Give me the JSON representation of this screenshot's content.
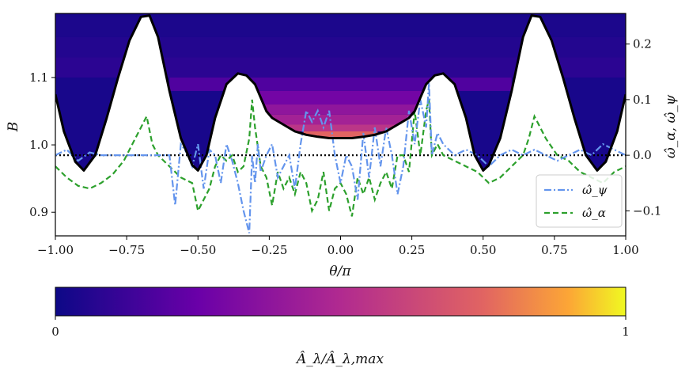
{
  "chart_data": {
    "type": "line",
    "x_label": "θ/π",
    "y_label_left": "B",
    "y_label_right": "ω̂_α,  ω̂_ψ",
    "colorbar_label": "Â_λ/Â_λ,max",
    "xlim": [
      -1.0,
      1.0
    ],
    "ylim_left": [
      0.865,
      1.195
    ],
    "ylim_right": [
      -0.145,
      0.255
    ],
    "x_ticks": [
      "−1.00",
      "−0.75",
      "−0.50",
      "−0.25",
      "0.00",
      "0.25",
      "0.50",
      "0.75",
      "1.00"
    ],
    "y_ticks_left": [
      "0.9",
      "1.0",
      "1.1"
    ],
    "y_ticks_right": [
      "−0.1",
      "0.0",
      "0.1",
      "0.2"
    ],
    "colorbar_ticks": [
      "0",
      "1"
    ],
    "colormap": "plasma",
    "colorbar_range": [
      0,
      1
    ],
    "series": [
      {
        "name": "B",
        "axis": "left",
        "color": "#000000",
        "style": "solid",
        "x": [
          -1.0,
          -0.97,
          -0.93,
          -0.9,
          -0.86,
          -0.82,
          -0.78,
          -0.74,
          -0.7,
          -0.67,
          -0.64,
          -0.6,
          -0.56,
          -0.52,
          -0.5,
          -0.47,
          -0.44,
          -0.4,
          -0.36,
          -0.33,
          -0.3,
          -0.28,
          -0.26,
          -0.24,
          -0.2,
          -0.16,
          -0.12,
          -0.08,
          -0.04,
          0.0,
          0.04,
          0.08,
          0.12,
          0.16,
          0.2,
          0.24,
          0.26,
          0.28,
          0.3,
          0.33,
          0.36,
          0.4,
          0.44,
          0.47,
          0.5,
          0.52,
          0.56,
          0.6,
          0.64,
          0.67,
          0.7,
          0.74,
          0.78,
          0.82,
          0.86,
          0.9,
          0.93,
          0.97,
          1.0
        ],
        "y": [
          1.075,
          1.02,
          0.975,
          0.962,
          0.985,
          1.04,
          1.1,
          1.155,
          1.19,
          1.192,
          1.16,
          1.08,
          1.01,
          0.97,
          0.962,
          0.985,
          1.04,
          1.09,
          1.106,
          1.103,
          1.09,
          1.07,
          1.05,
          1.04,
          1.03,
          1.02,
          1.015,
          1.012,
          1.01,
          1.01,
          1.01,
          1.012,
          1.015,
          1.02,
          1.03,
          1.04,
          1.05,
          1.07,
          1.09,
          1.103,
          1.106,
          1.09,
          1.04,
          0.985,
          0.962,
          0.97,
          1.01,
          1.08,
          1.16,
          1.192,
          1.19,
          1.155,
          1.1,
          1.04,
          0.985,
          0.962,
          0.975,
          1.02,
          1.075
        ]
      },
      {
        "name": "ω̂_ψ",
        "axis": "right",
        "color": "#6495ed",
        "style": "dashdot",
        "x": [
          -1.0,
          -0.96,
          -0.92,
          -0.88,
          -0.84,
          -0.8,
          -0.76,
          -0.72,
          -0.68,
          -0.64,
          -0.6,
          -0.58,
          -0.56,
          -0.54,
          -0.52,
          -0.5,
          -0.48,
          -0.46,
          -0.44,
          -0.42,
          -0.4,
          -0.38,
          -0.36,
          -0.34,
          -0.32,
          -0.31,
          -0.3,
          -0.29,
          -0.28,
          -0.26,
          -0.24,
          -0.22,
          -0.2,
          -0.18,
          -0.16,
          -0.14,
          -0.12,
          -0.1,
          -0.08,
          -0.06,
          -0.04,
          -0.02,
          0.0,
          0.02,
          0.04,
          0.06,
          0.08,
          0.1,
          0.12,
          0.14,
          0.16,
          0.18,
          0.2,
          0.22,
          0.24,
          0.26,
          0.28,
          0.3,
          0.31,
          0.32,
          0.34,
          0.36,
          0.4,
          0.44,
          0.48,
          0.52,
          0.56,
          0.6,
          0.64,
          0.68,
          0.72,
          0.76,
          0.8,
          0.84,
          0.88,
          0.92,
          0.96,
          1.0
        ],
        "y": [
          0.0,
          0.01,
          -0.01,
          0.005,
          0.0,
          0.0,
          0.0,
          0.0,
          0.0,
          0.0,
          0.0,
          -0.09,
          0.02,
          0.005,
          -0.02,
          0.02,
          -0.06,
          0.01,
          0.0,
          -0.05,
          0.02,
          -0.01,
          -0.05,
          -0.1,
          -0.14,
          0.0,
          -0.05,
          0.02,
          -0.03,
          0.0,
          0.02,
          -0.04,
          -0.02,
          0.0,
          -0.06,
          0.02,
          0.08,
          0.06,
          0.08,
          0.05,
          0.08,
          0.0,
          -0.05,
          0.0,
          -0.02,
          -0.08,
          0.04,
          -0.04,
          0.05,
          -0.02,
          0.05,
          0.0,
          -0.07,
          -0.02,
          0.08,
          0.02,
          0.1,
          0.05,
          0.13,
          0.0,
          0.04,
          0.02,
          0.0,
          0.01,
          0.0,
          -0.02,
          0.0,
          0.01,
          0.0,
          0.01,
          0.0,
          -0.01,
          0.0,
          0.01,
          0.0,
          0.02,
          0.01,
          0.0
        ]
      },
      {
        "name": "ω̂_α",
        "axis": "right",
        "color": "#2ca02c",
        "style": "dashed",
        "x": [
          -1.0,
          -0.96,
          -0.92,
          -0.88,
          -0.84,
          -0.8,
          -0.76,
          -0.72,
          -0.7,
          -0.68,
          -0.66,
          -0.64,
          -0.6,
          -0.56,
          -0.52,
          -0.5,
          -0.48,
          -0.46,
          -0.44,
          -0.42,
          -0.4,
          -0.38,
          -0.36,
          -0.34,
          -0.32,
          -0.31,
          -0.3,
          -0.28,
          -0.26,
          -0.24,
          -0.22,
          -0.2,
          -0.18,
          -0.16,
          -0.14,
          -0.12,
          -0.1,
          -0.08,
          -0.06,
          -0.04,
          -0.02,
          0.0,
          0.02,
          0.04,
          0.06,
          0.08,
          0.1,
          0.12,
          0.14,
          0.16,
          0.18,
          0.2,
          0.22,
          0.24,
          0.26,
          0.28,
          0.3,
          0.31,
          0.32,
          0.34,
          0.36,
          0.4,
          0.44,
          0.48,
          0.52,
          0.56,
          0.6,
          0.64,
          0.66,
          0.68,
          0.7,
          0.72,
          0.76,
          0.8,
          0.84,
          0.88,
          0.92,
          0.96,
          1.0
        ],
        "y": [
          -0.02,
          -0.04,
          -0.055,
          -0.06,
          -0.05,
          -0.035,
          -0.01,
          0.03,
          0.05,
          0.07,
          0.02,
          0.0,
          -0.02,
          -0.04,
          -0.05,
          -0.1,
          -0.08,
          -0.06,
          -0.02,
          0.0,
          -0.01,
          0.0,
          -0.03,
          -0.02,
          0.03,
          0.1,
          0.05,
          -0.02,
          -0.04,
          -0.09,
          -0.03,
          -0.06,
          -0.04,
          -0.07,
          -0.03,
          -0.05,
          -0.1,
          -0.08,
          -0.03,
          -0.1,
          -0.06,
          -0.05,
          -0.07,
          -0.11,
          -0.04,
          -0.07,
          -0.04,
          -0.08,
          -0.05,
          -0.03,
          -0.06,
          0.0,
          0.0,
          -0.03,
          0.08,
          0.0,
          0.08,
          0.1,
          0.0,
          0.02,
          0.0,
          -0.01,
          -0.02,
          -0.03,
          -0.05,
          -0.04,
          -0.02,
          0.0,
          0.03,
          0.07,
          0.05,
          0.03,
          0.0,
          -0.01,
          -0.03,
          -0.04,
          -0.05,
          -0.03,
          -0.02
        ]
      }
    ],
    "zero_line": {
      "axis": "right",
      "value": 0.0,
      "color": "#000000",
      "style": "dotted"
    },
    "heatmap_rows": [
      {
        "y": 1.19,
        "x_range": [
          -1.0,
          1.0
        ],
        "value": 0.04
      },
      {
        "y": 1.16,
        "x_range": [
          -1.0,
          1.0
        ],
        "value": 0.06
      },
      {
        "y": 1.13,
        "x_range": [
          -1.0,
          1.0
        ],
        "value": 0.08
      },
      {
        "y": 1.1,
        "x_range": [
          -0.6,
          0.6
        ],
        "value": 0.18
      },
      {
        "y": 1.08,
        "x_range": [
          -0.38,
          0.38
        ],
        "value": 0.28
      },
      {
        "y": 1.06,
        "x_range": [
          -0.3,
          0.3
        ],
        "value": 0.38
      },
      {
        "y": 1.045,
        "x_range": [
          -0.25,
          0.25
        ],
        "value": 0.45
      },
      {
        "y": 1.03,
        "x_range": [
          -0.2,
          0.2
        ],
        "value": 0.55
      },
      {
        "y": 1.02,
        "x_range": [
          -0.13,
          0.13
        ],
        "value": 0.75
      }
    ],
    "legend": {
      "location": "lower right",
      "entries": [
        "ω̂_ψ",
        "ω̂_α"
      ]
    }
  }
}
